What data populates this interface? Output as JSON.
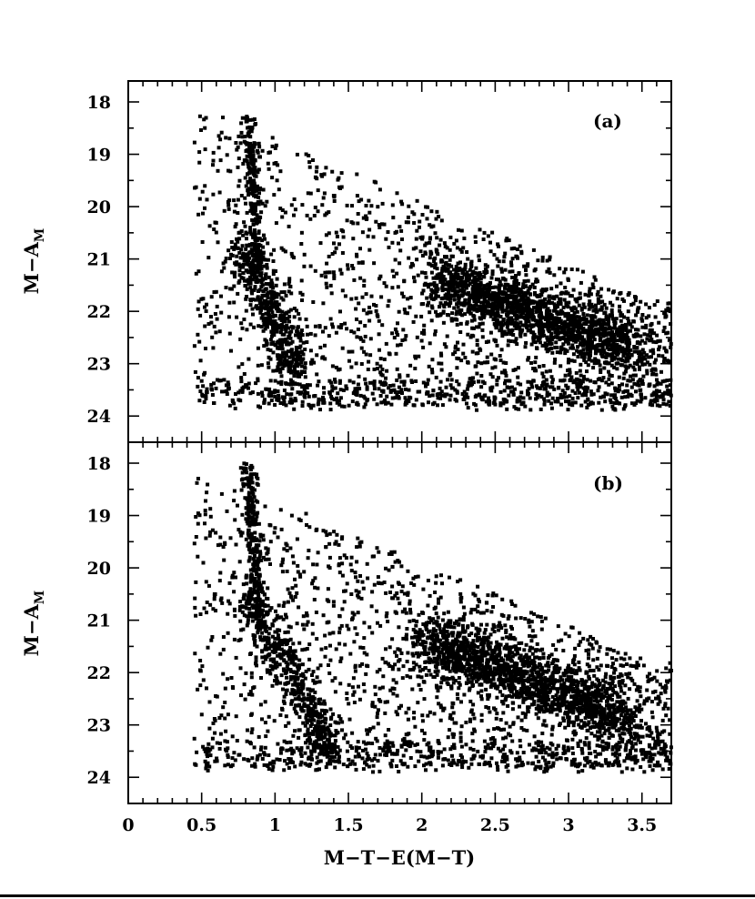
{
  "chart_data": [
    {
      "type": "scatter",
      "panel": "(a)",
      "xlabel": "M−T−E(M−T)",
      "ylabel": "M−A",
      "ylabel_sub": "M",
      "xlim": [
        0,
        3.7
      ],
      "ylim": [
        24.5,
        17.6
      ],
      "y_inverted": true,
      "xticks": [
        "0",
        "0.5",
        "1",
        "1.5",
        "2",
        "2.5",
        "3",
        "3.5"
      ],
      "yticks": [
        "18",
        "19",
        "20",
        "21",
        "22",
        "23",
        "24"
      ],
      "show_x_tick_labels": false,
      "grid": false,
      "features": {
        "vertical_branch": {
          "x": [
            0.82,
            0.98
          ],
          "y": [
            18.2,
            21.2
          ]
        },
        "diagonal_sequence": {
          "x": [
            0.8,
            1.15
          ],
          "y": [
            20.8,
            23.2
          ]
        },
        "dense_red_clump": {
          "x": [
            2.1,
            3.45
          ],
          "y": [
            21.4,
            23.3
          ]
        },
        "scatter_envelope": {
          "x": [
            0.45,
            3.7
          ],
          "y": [
            18.1,
            23.9
          ]
        }
      }
    },
    {
      "type": "scatter",
      "panel": "(b)",
      "xlabel": "M−T−E(M−T)",
      "ylabel": "M−A",
      "ylabel_sub": "M",
      "xlim": [
        0,
        3.7
      ],
      "ylim": [
        24.5,
        17.6
      ],
      "y_inverted": true,
      "xticks": [
        "0",
        "0.5",
        "1",
        "1.5",
        "2",
        "2.5",
        "3",
        "3.5"
      ],
      "yticks": [
        "18",
        "19",
        "20",
        "21",
        "22",
        "23",
        "24"
      ],
      "show_x_tick_labels": true,
      "grid": false,
      "features": {
        "vertical_branch": {
          "x": [
            0.82,
            0.98
          ],
          "y": [
            18.0,
            21.0
          ]
        },
        "diagonal_sequence": {
          "x": [
            0.8,
            1.4
          ],
          "y": [
            20.5,
            23.6
          ]
        },
        "dense_red_clump": {
          "x": [
            2.0,
            3.4
          ],
          "y": [
            21.3,
            23.6
          ]
        },
        "scatter_envelope": {
          "x": [
            0.45,
            3.7
          ],
          "y": [
            18.0,
            23.9
          ]
        }
      }
    }
  ]
}
